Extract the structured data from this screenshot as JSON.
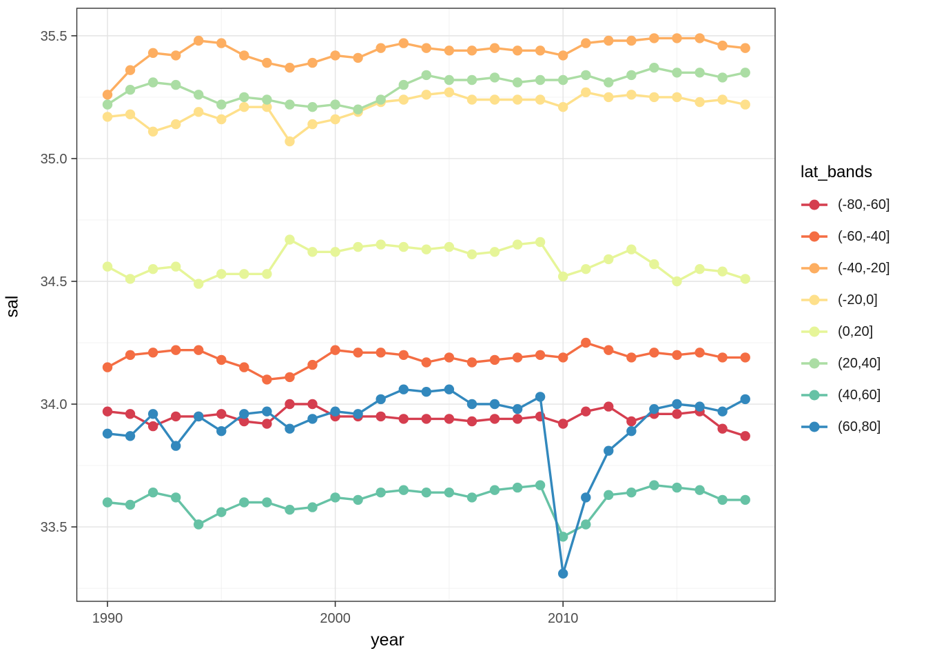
{
  "chart_data": {
    "type": "line",
    "title": "",
    "xlabel": "year",
    "ylabel": "sal",
    "legend_title": "lat_bands",
    "legend_position": "right",
    "grid": true,
    "x": [
      1990,
      1991,
      1992,
      1993,
      1994,
      1995,
      1996,
      1997,
      1998,
      1999,
      2000,
      2001,
      2002,
      2003,
      2004,
      2005,
      2006,
      2007,
      2008,
      2009,
      2010,
      2011,
      2012,
      2013,
      2014,
      2015,
      2016,
      2017,
      2018
    ],
    "series": [
      {
        "key": "band-m80-m60",
        "label": "(-80,-60]",
        "color": "#d53e4f",
        "values": [
          33.97,
          33.96,
          33.91,
          33.95,
          33.95,
          33.96,
          33.93,
          33.92,
          34.0,
          34.0,
          33.95,
          33.95,
          33.95,
          33.94,
          33.94,
          33.94,
          33.93,
          33.94,
          33.94,
          33.95,
          33.92,
          33.97,
          33.99,
          33.93,
          33.96,
          33.96,
          33.97,
          33.9,
          33.87
        ]
      },
      {
        "key": "band-m60-m40",
        "label": "(-60,-40]",
        "color": "#f46d43",
        "values": [
          34.15,
          34.2,
          34.21,
          34.22,
          34.22,
          34.18,
          34.15,
          34.1,
          34.11,
          34.16,
          34.22,
          34.21,
          34.21,
          34.2,
          34.17,
          34.19,
          34.17,
          34.18,
          34.19,
          34.2,
          34.19,
          34.25,
          34.22,
          34.19,
          34.21,
          34.2,
          34.21,
          34.19,
          34.19
        ]
      },
      {
        "key": "band-m40-m20",
        "label": "(-40,-20]",
        "color": "#fdae61",
        "values": [
          35.26,
          35.36,
          35.43,
          35.42,
          35.48,
          35.47,
          35.42,
          35.39,
          35.37,
          35.39,
          35.42,
          35.41,
          35.45,
          35.47,
          35.45,
          35.44,
          35.44,
          35.45,
          35.44,
          35.44,
          35.42,
          35.47,
          35.48,
          35.48,
          35.49,
          35.49,
          35.49,
          35.46,
          35.45
        ]
      },
      {
        "key": "band-m20-0",
        "label": "(-20,0]",
        "color": "#fee08b",
        "values": [
          35.17,
          35.18,
          35.11,
          35.14,
          35.19,
          35.16,
          35.21,
          35.21,
          35.07,
          35.14,
          35.16,
          35.19,
          35.23,
          35.24,
          35.26,
          35.27,
          35.24,
          35.24,
          35.24,
          35.24,
          35.21,
          35.27,
          35.25,
          35.26,
          35.25,
          35.25,
          35.23,
          35.24,
          35.22
        ]
      },
      {
        "key": "band-0-20",
        "label": "(0,20]",
        "color": "#e6f598",
        "values": [
          34.56,
          34.51,
          34.55,
          34.56,
          34.49,
          34.53,
          34.53,
          34.53,
          34.67,
          34.62,
          34.62,
          34.64,
          34.65,
          34.64,
          34.63,
          34.64,
          34.61,
          34.62,
          34.65,
          34.66,
          34.52,
          34.55,
          34.59,
          34.63,
          34.57,
          34.5,
          34.55,
          34.54,
          34.51
        ]
      },
      {
        "key": "band-20-40",
        "label": "(20,40]",
        "color": "#abdda4",
        "values": [
          35.22,
          35.28,
          35.31,
          35.3,
          35.26,
          35.22,
          35.25,
          35.24,
          35.22,
          35.21,
          35.22,
          35.2,
          35.24,
          35.3,
          35.34,
          35.32,
          35.32,
          35.33,
          35.31,
          35.32,
          35.32,
          35.34,
          35.31,
          35.34,
          35.37,
          35.35,
          35.35,
          35.33,
          35.35
        ]
      },
      {
        "key": "band-40-60",
        "label": "(40,60]",
        "color": "#66c2a5",
        "values": [
          33.6,
          33.59,
          33.64,
          33.62,
          33.51,
          33.56,
          33.6,
          33.6,
          33.57,
          33.58,
          33.62,
          33.61,
          33.64,
          33.65,
          33.64,
          33.64,
          33.62,
          33.65,
          33.66,
          33.67,
          33.46,
          33.51,
          33.63,
          33.64,
          33.67,
          33.66,
          33.65,
          33.61,
          33.61
        ]
      },
      {
        "key": "band-60-80",
        "label": "(60,80]",
        "color": "#3288bd",
        "values": [
          33.88,
          33.87,
          33.96,
          33.83,
          33.95,
          33.89,
          33.96,
          33.97,
          33.9,
          33.94,
          33.97,
          33.96,
          34.02,
          34.06,
          34.05,
          34.06,
          34.0,
          34.0,
          33.98,
          34.03,
          33.31,
          33.62,
          33.81,
          33.89,
          33.98,
          34.0,
          33.99,
          33.97,
          34.02
        ]
      }
    ],
    "x_axis": {
      "lim": [
        1988.655,
        2019.31
      ],
      "major_ticks": [
        1990,
        2000,
        2010
      ],
      "tick_labels": [
        "1990",
        "2000",
        "2010"
      ],
      "minor_ticks": [
        1995,
        2005,
        2015
      ]
    },
    "y_axis": {
      "lim": [
        33.197,
        35.612
      ],
      "major_ticks": [
        33.5,
        34.0,
        34.5,
        35.0,
        35.5
      ],
      "tick_labels": [
        "33.5",
        "34.0",
        "34.5",
        "35.0",
        "35.5"
      ],
      "minor_ticks": [
        33.25,
        33.75,
        34.25,
        34.75,
        35.25
      ]
    },
    "style": {
      "grid_major_color": "#e3e3e3",
      "grid_minor_color": "#f0f0f0",
      "panel_border_color": "#333333",
      "tick_color": "#333333",
      "tick_label_color": "#4d4d4d",
      "background": "#ffffff",
      "point_radius": 7.2,
      "line_width": 3.4
    }
  }
}
